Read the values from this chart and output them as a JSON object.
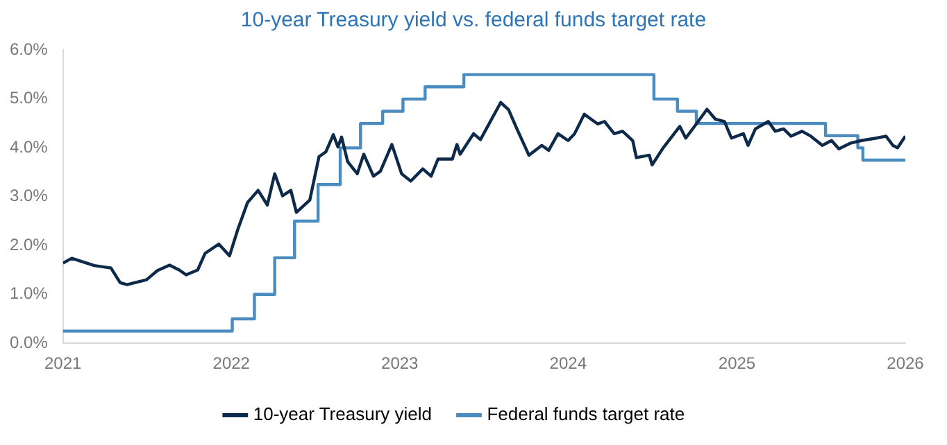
{
  "chart_data": {
    "type": "line",
    "title": "10-year Treasury yield vs. federal funds target rate",
    "xlim": [
      "2021",
      "2026"
    ],
    "xticks": [
      "2021",
      "2022",
      "2023",
      "2024",
      "2025",
      "2026"
    ],
    "ylim": [
      0,
      6
    ],
    "yticks": [
      {
        "value": 0,
        "label": "0.0%"
      },
      {
        "value": 1,
        "label": "1.0%"
      },
      {
        "value": 2,
        "label": "2.0%"
      },
      {
        "value": 3,
        "label": "3.0%"
      },
      {
        "value": 4,
        "label": "4.0%"
      },
      {
        "value": 5,
        "label": "5.0%"
      },
      {
        "value": 6,
        "label": "6.0%"
      }
    ],
    "grid": false,
    "legend": "bottom",
    "marker": "none",
    "series": [
      {
        "name": "10-year Treasury yield",
        "color": "#0d2a4a",
        "x": [
          "2021-01-01",
          "2021-01-20",
          "2021-03-10",
          "2021-04-15",
          "2021-05-05",
          "2021-05-20",
          "2021-07-01",
          "2021-07-25",
          "2021-08-20",
          "2021-09-10",
          "2021-09-25",
          "2021-10-20",
          "2021-11-05",
          "2021-12-05",
          "2021-12-28",
          "2022-01-15",
          "2022-02-05",
          "2022-02-28",
          "2022-03-20",
          "2022-04-05",
          "2022-04-22",
          "2022-05-10",
          "2022-05-22",
          "2022-06-20",
          "2022-07-01",
          "2022-07-10",
          "2022-07-25",
          "2022-08-10",
          "2022-08-20",
          "2022-08-28",
          "2022-09-10",
          "2022-10-01",
          "2022-10-15",
          "2022-11-05",
          "2022-11-20",
          "2022-12-15",
          "2023-01-05",
          "2023-01-25",
          "2023-02-20",
          "2023-03-10",
          "2023-03-25",
          "2023-04-25",
          "2023-05-05",
          "2023-05-12",
          "2023-06-10",
          "2023-06-25",
          "2023-08-08",
          "2023-08-25",
          "2023-09-12",
          "2023-10-08",
          "2023-11-05",
          "2023-11-20",
          "2023-12-10",
          "2024-01-01",
          "2024-01-15",
          "2024-02-05",
          "2024-03-05",
          "2024-03-20",
          "2024-04-10",
          "2024-04-28",
          "2024-05-20",
          "2024-05-28",
          "2024-06-25",
          "2024-07-01",
          "2024-07-25",
          "2024-08-30",
          "2024-09-12",
          "2024-10-05",
          "2024-10-28",
          "2024-11-15",
          "2024-12-05",
          "2024-12-20",
          "2025-01-15",
          "2025-01-25",
          "2025-02-10",
          "2025-03-10",
          "2025-03-25",
          "2025-04-12",
          "2025-04-28",
          "2025-05-22",
          "2025-06-10",
          "2025-07-05",
          "2025-07-25",
          "2025-08-10",
          "2025-09-05",
          "2025-09-28",
          "2025-10-30",
          "2025-11-20",
          "2025-12-05",
          "2025-12-15",
          "2026-01-01"
        ],
        "values": [
          1.64,
          1.74,
          1.59,
          1.54,
          1.24,
          1.2,
          1.3,
          1.49,
          1.6,
          1.5,
          1.4,
          1.5,
          1.84,
          2.03,
          1.79,
          2.33,
          2.88,
          3.13,
          2.83,
          3.47,
          3.02,
          3.13,
          2.68,
          2.93,
          3.42,
          3.82,
          3.92,
          4.27,
          4.02,
          4.22,
          3.72,
          3.47,
          3.87,
          3.42,
          3.52,
          4.07,
          3.47,
          3.32,
          3.57,
          3.42,
          3.77,
          3.77,
          4.07,
          3.87,
          4.29,
          4.17,
          4.93,
          4.78,
          4.39,
          3.85,
          4.05,
          3.95,
          4.29,
          4.15,
          4.29,
          4.69,
          4.49,
          4.54,
          4.29,
          4.34,
          4.15,
          3.8,
          3.85,
          3.65,
          4.0,
          4.44,
          4.2,
          4.49,
          4.79,
          4.59,
          4.54,
          4.2,
          4.29,
          4.05,
          4.39,
          4.54,
          4.34,
          4.39,
          4.24,
          4.34,
          4.24,
          4.05,
          4.15,
          3.98,
          4.1,
          4.15,
          4.2,
          4.24,
          4.05,
          4.0,
          4.24
        ]
      },
      {
        "name": "Federal funds target rate",
        "type": "step",
        "color": "#4a8cc0",
        "x": [
          "2021-01-01",
          "2022-01-03",
          "2022-02-20",
          "2022-04-05",
          "2022-05-18",
          "2022-07-08",
          "2022-08-25",
          "2022-10-08",
          "2022-11-25",
          "2023-01-08",
          "2023-02-25",
          "2023-05-20",
          "2024-07-05",
          "2024-08-25",
          "2024-10-05",
          "2025-07-12",
          "2025-09-20",
          "2025-10-01",
          "2026-01-01"
        ],
        "values": [
          0.25,
          0.5,
          1.0,
          1.75,
          2.5,
          3.25,
          4.0,
          4.5,
          4.75,
          5.0,
          5.25,
          5.5,
          5.0,
          4.75,
          4.5,
          4.25,
          4.0,
          3.75,
          3.75
        ]
      }
    ]
  }
}
